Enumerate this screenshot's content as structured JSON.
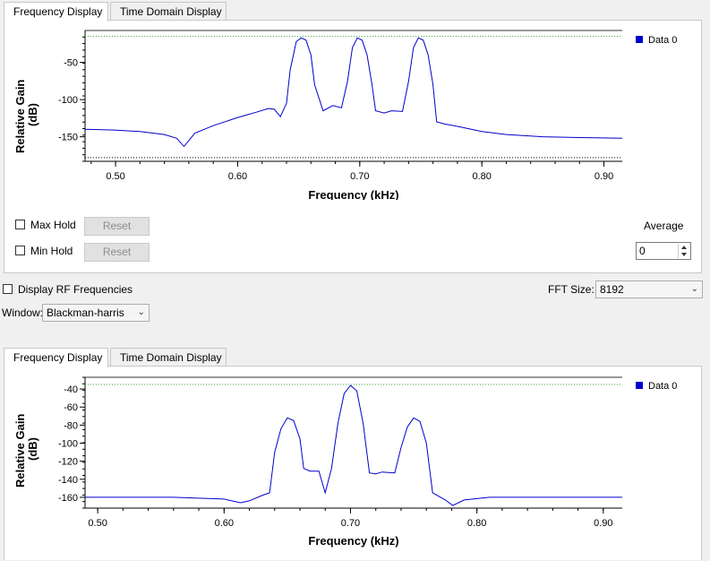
{
  "top": {
    "tabs": [
      {
        "label": "Frequency Display",
        "active": true
      },
      {
        "label": "Time Domain Display",
        "active": false
      }
    ],
    "legend": "Data 0",
    "max_hold_label": "Max Hold",
    "min_hold_label": "Min Hold",
    "reset_label": "Reset",
    "average_label": "Average",
    "average_value": "0"
  },
  "controls": {
    "display_rf_label": "Display RF Frequencies",
    "fft_size_label": "FFT Size:",
    "fft_size_value": "8192",
    "window_label": "Window:",
    "window_value": "Blackman-harris"
  },
  "bottom": {
    "tabs": [
      {
        "label": "Frequency Display",
        "active": true
      },
      {
        "label": "Time Domain Display",
        "active": false
      }
    ],
    "legend": "Data 0"
  },
  "colors": {
    "series": "#0000cc",
    "marker": "#33aa33",
    "tab_active": "#ffffff",
    "background": "#f0f0f0"
  },
  "icons": {
    "dropdown": "chevron-down-icon",
    "spin_up": "triangle-up-icon",
    "spin_down": "triangle-down-icon"
  },
  "chart_data": [
    {
      "type": "line",
      "xlabel": "Frequency (kHz)",
      "ylabel": "Relative Gain (dB)",
      "xlim": [
        0.475,
        0.915
      ],
      "ylim": [
        -183,
        -7
      ],
      "x_ticks": [
        "0.50",
        "0.60",
        "0.70",
        "0.80",
        "0.90"
      ],
      "y_ticks": [
        "-50",
        "-100",
        "-150"
      ],
      "markers": {
        "upper_green": -15,
        "lower_black": -178
      },
      "series": [
        {
          "name": "Data 0",
          "x": [
            0.475,
            0.5,
            0.52,
            0.54,
            0.55,
            0.556,
            0.565,
            0.58,
            0.6,
            0.615,
            0.625,
            0.63,
            0.635,
            0.64,
            0.643,
            0.648,
            0.652,
            0.656,
            0.66,
            0.663,
            0.67,
            0.678,
            0.685,
            0.69,
            0.694,
            0.698,
            0.702,
            0.706,
            0.71,
            0.713,
            0.72,
            0.726,
            0.735,
            0.74,
            0.744,
            0.748,
            0.752,
            0.756,
            0.76,
            0.763,
            0.77,
            0.78,
            0.8,
            0.82,
            0.85,
            0.88,
            0.915
          ],
          "y": [
            -140,
            -141,
            -143,
            -147,
            -152,
            -163,
            -145,
            -135,
            -124,
            -117,
            -112,
            -113,
            -123,
            -105,
            -60,
            -22,
            -17,
            -20,
            -40,
            -80,
            -115,
            -108,
            -111,
            -75,
            -30,
            -17,
            -20,
            -40,
            -80,
            -115,
            -118,
            -115,
            -116,
            -75,
            -30,
            -17,
            -20,
            -40,
            -80,
            -130,
            -133,
            -136,
            -143,
            -147,
            -150,
            -151,
            -152
          ]
        }
      ]
    },
    {
      "type": "line",
      "xlabel": "Frequency (kHz)",
      "ylabel": "Relative Gain (dB)",
      "xlim": [
        0.49,
        0.915
      ],
      "ylim": [
        -172,
        -27
      ],
      "x_ticks": [
        "0.50",
        "0.60",
        "0.70",
        "0.80",
        "0.90"
      ],
      "y_ticks": [
        "-40",
        "-60",
        "-80",
        "-100",
        "-120",
        "-140",
        "-160"
      ],
      "markers": {
        "upper_green": -35
      },
      "series": [
        {
          "name": "Data 0",
          "x": [
            0.49,
            0.52,
            0.56,
            0.6,
            0.613,
            0.62,
            0.63,
            0.636,
            0.64,
            0.645,
            0.65,
            0.655,
            0.66,
            0.663,
            0.668,
            0.675,
            0.68,
            0.685,
            0.69,
            0.695,
            0.7,
            0.705,
            0.71,
            0.715,
            0.72,
            0.725,
            0.735,
            0.74,
            0.745,
            0.75,
            0.755,
            0.76,
            0.765,
            0.775,
            0.781,
            0.79,
            0.81,
            0.86,
            0.915
          ],
          "y": [
            -160,
            -160,
            -160,
            -162,
            -166,
            -164,
            -158,
            -155,
            -110,
            -84,
            -72,
            -75,
            -95,
            -128,
            -131,
            -131,
            -155,
            -128,
            -78,
            -45,
            -36,
            -42,
            -78,
            -133,
            -134,
            -132,
            -133,
            -105,
            -82,
            -72,
            -76,
            -100,
            -155,
            -163,
            -169,
            -163,
            -160,
            -160,
            -160
          ]
        }
      ]
    }
  ]
}
